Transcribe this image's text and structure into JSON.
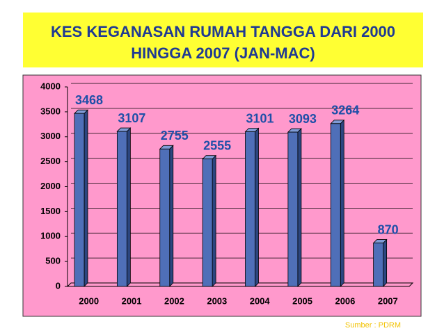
{
  "chart_data": {
    "type": "bar",
    "title": "KES KEGANASAN RUMAH TANGGA DARI 2000 HINGGA 2007 (JAN-MAC)",
    "categories": [
      "2000",
      "2001",
      "2002",
      "2003",
      "2004",
      "2005",
      "2006",
      "2007"
    ],
    "values": [
      3468,
      3107,
      2755,
      2555,
      3101,
      3093,
      3264,
      870
    ],
    "color": "#4f6fb8",
    "ylim": [
      0,
      4000
    ],
    "yticks": [
      0,
      500,
      1000,
      1500,
      2000,
      2500,
      3000,
      3500,
      4000
    ],
    "grid": true,
    "source": "Sumber : PDRM"
  }
}
